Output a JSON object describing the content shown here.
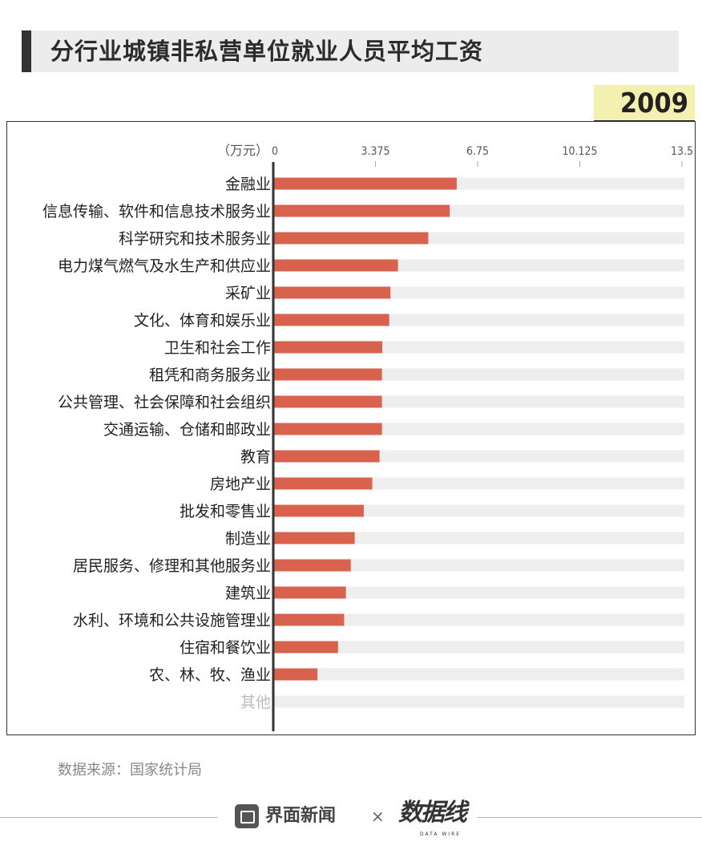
{
  "header": {
    "title": "分行业城镇非私营单位就业人员平均工资",
    "year": "2009"
  },
  "chart_data": {
    "type": "bar",
    "orientation": "horizontal",
    "unit_label": "（万元）",
    "xlim": [
      0,
      13.5
    ],
    "ticks": [
      "0",
      "3.375",
      "6.75",
      "10.125",
      "13.5"
    ],
    "tick_values": [
      0,
      3.375,
      6.75,
      10.125,
      13.5
    ],
    "categories": [
      "金融业",
      "信息传输、软件和信息技术服务业",
      "科学研究和技术服务业",
      "电力煤气燃气及水生产和供应业",
      "采矿业",
      "文化、体育和娱乐业",
      "卫生和社会工作",
      "租凭和商务服务业",
      "公共管理、社会保障和社会组织",
      "交通运输、仓储和邮政业",
      "教育",
      "房地产业",
      "批发和零售业",
      "制造业",
      "居民服务、修理和其他服务业",
      "建筑业",
      "水利、环境和公共设施管理业",
      "住宿和餐饮业",
      "农、林、牧、渔业",
      "其他"
    ],
    "values": [
      6.06,
      5.83,
      5.12,
      4.12,
      3.87,
      3.83,
      3.6,
      3.59,
      3.59,
      3.59,
      3.51,
      3.27,
      2.99,
      2.69,
      2.56,
      2.4,
      2.34,
      2.14,
      1.46,
      0
    ],
    "dimmed_categories": [
      "其他"
    ],
    "grid": false,
    "legend": "none",
    "colors": {
      "bar": "#d9624e",
      "track": "#eeeeee",
      "axis": "#333333",
      "label": "#222222",
      "dimmed_label": "#bbbbbb",
      "tick": "#555555"
    }
  },
  "footer": {
    "source": "数据来源：国家统计局",
    "brand": "界面新闻",
    "separator": "×",
    "partner_logo": "数据线",
    "partner_sub": "DATA WIRE",
    "brand_icon": "jiemian-logo-icon"
  }
}
